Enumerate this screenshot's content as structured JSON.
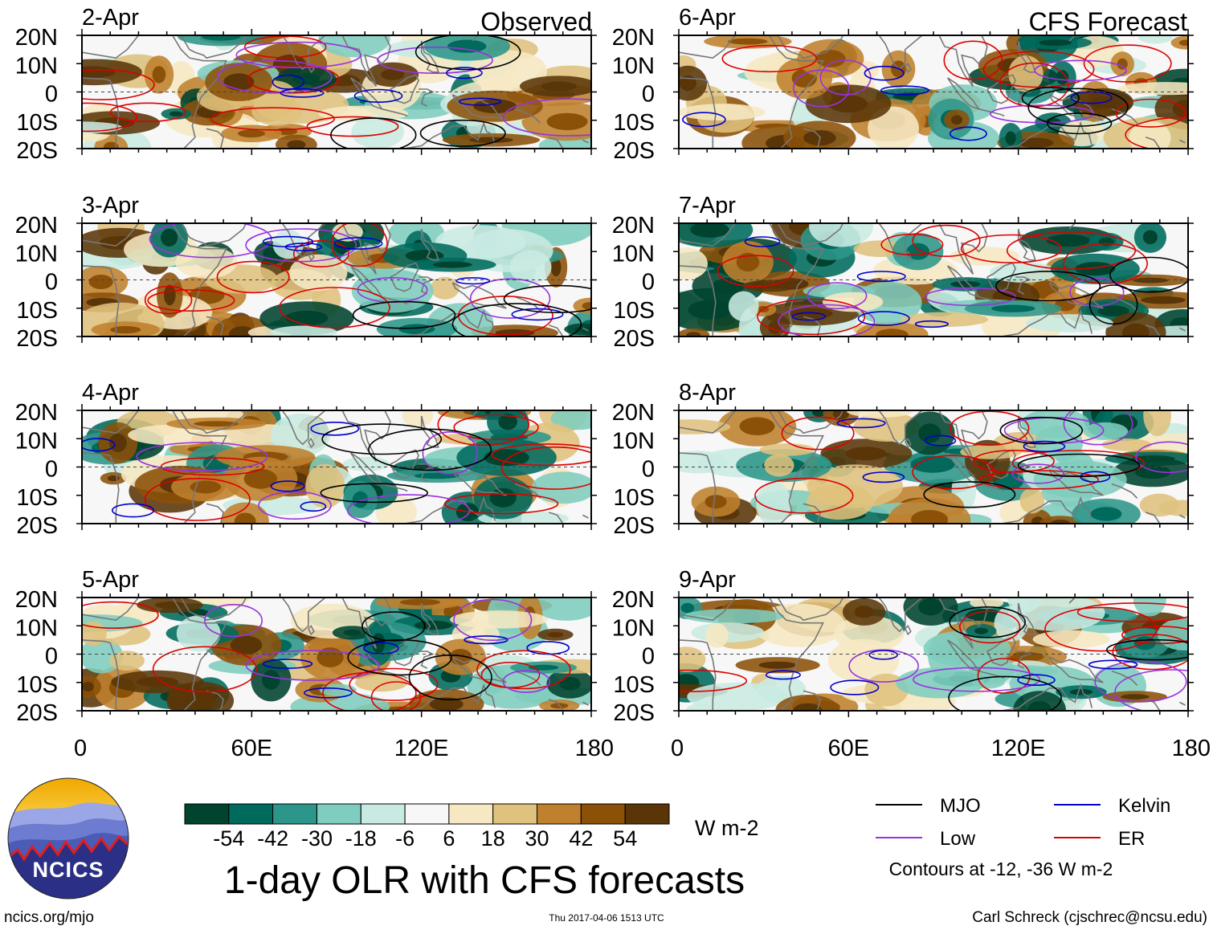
{
  "title": "1-day OLR with CFS forecasts",
  "left_header": "Observed",
  "right_header": "CFS Forecast",
  "site": "ncics.org/mjo",
  "timestamp": "Thu 2017-04-06 1513 UTC",
  "author": "Carl Schreck (cjschrec@ncsu.edu)",
  "logo_text": "NCICS",
  "colors": {
    "mjo": "#000000",
    "kelvin": "#0000cc",
    "low": "#9933dd",
    "er": "#dd0000",
    "land": "#777777",
    "scale": [
      "#00432f",
      "#006a5d",
      "#2d968a",
      "#7fcdbe",
      "#c9eae3",
      "#f7f7f7",
      "#f6e8c3",
      "#dfc27d",
      "#bf812d",
      "#8c5109",
      "#5a3508"
    ]
  },
  "chart_data": {
    "type": "heatmap",
    "variable": "OLR anomaly",
    "units": "W m-2",
    "x_ticks": [
      "0",
      "60E",
      "120E",
      "180"
    ],
    "y_ticks": [
      "20N",
      "10N",
      "0",
      "10S",
      "20S"
    ],
    "xlim": [
      0,
      180
    ],
    "ylim": [
      -20,
      20
    ],
    "colorbar_ticks": [
      "-54",
      "-42",
      "-30",
      "-18",
      "-6",
      "6",
      "18",
      "30",
      "42",
      "54"
    ],
    "contour_note": "Contours at -12, -36 W m-2",
    "legend": [
      {
        "key": "mjo",
        "label": "MJO"
      },
      {
        "key": "kelvin",
        "label": "Kelvin"
      },
      {
        "key": "low",
        "label": "Low"
      },
      {
        "key": "er",
        "label": "ER"
      }
    ],
    "panels": [
      {
        "date": "2-Apr",
        "source": "Observed",
        "seed": 11
      },
      {
        "date": "3-Apr",
        "source": "Observed",
        "seed": 23
      },
      {
        "date": "4-Apr",
        "source": "Observed",
        "seed": 37
      },
      {
        "date": "5-Apr",
        "source": "Observed",
        "seed": 41
      },
      {
        "date": "6-Apr",
        "source": "CFS Forecast",
        "seed": 53
      },
      {
        "date": "7-Apr",
        "source": "CFS Forecast",
        "seed": 67
      },
      {
        "date": "8-Apr",
        "source": "CFS Forecast",
        "seed": 79
      },
      {
        "date": "9-Apr",
        "source": "CFS Forecast",
        "seed": 83
      }
    ]
  }
}
